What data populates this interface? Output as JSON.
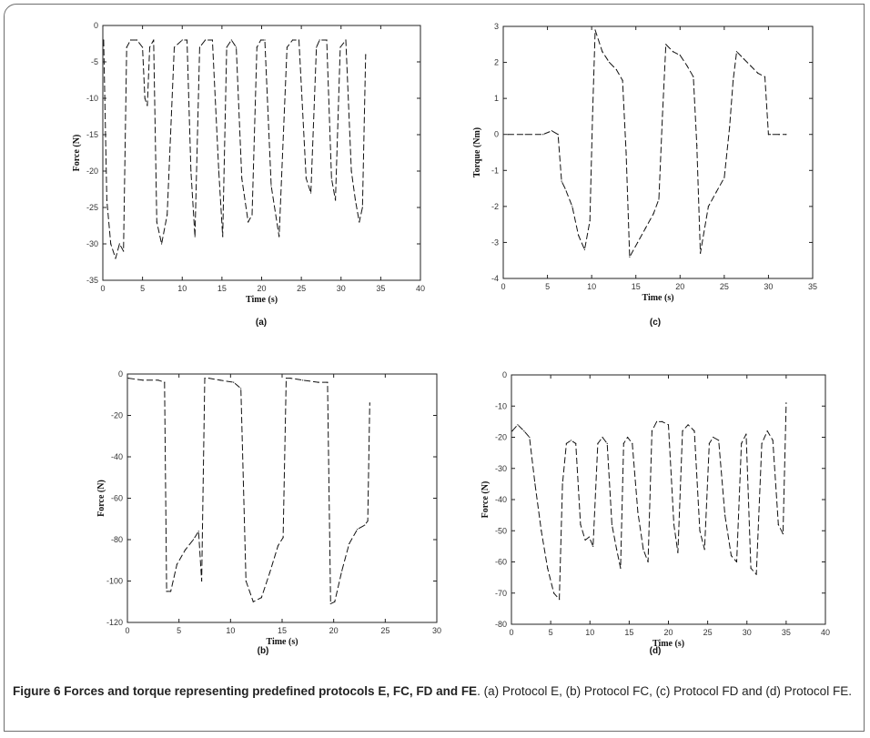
{
  "panels": [
    {
      "id": "a",
      "label": "(a)",
      "ylabel": "Force (N)",
      "xlabel": "Time (s)"
    },
    {
      "id": "c",
      "label": "(c)",
      "ylabel": "Torque (Nm)",
      "xlabel": "Time (s)"
    },
    {
      "id": "b",
      "label": "(b)",
      "ylabel": "Force (N)",
      "xlabel": "Time (s)"
    },
    {
      "id": "d",
      "label": "(d)",
      "ylabel": "Force (N)",
      "xlabel": "Time (s)"
    }
  ],
  "caption": {
    "title": "Figure 6 Forces and torque representing predefined protocols E, FC, FD and FE",
    "text": ". (a) Protocol E, (b) Protocol FC, (c) Protocol FD and (d) Protocol FE."
  },
  "chart_data": [
    {
      "id": "a",
      "type": "line",
      "xlabel": "Time (s)",
      "ylabel": "Force (N)",
      "xlim": [
        0,
        40
      ],
      "ylim": [
        -35,
        0
      ],
      "xticks": [
        0,
        5,
        10,
        15,
        20,
        25,
        30,
        35,
        40
      ],
      "yticks": [
        0,
        -5,
        -10,
        -15,
        -20,
        -25,
        -30,
        -35
      ],
      "line_style": "dashed",
      "color": "#111111",
      "x": [
        0.1,
        0.5,
        1.0,
        1.6,
        2.1,
        2.6,
        3.0,
        3.5,
        4.3,
        5.0,
        5.3,
        5.6,
        5.9,
        6.4,
        6.8,
        7.4,
        8.1,
        9.0,
        10.0,
        10.6,
        11.1,
        11.6,
        12.2,
        12.9,
        13.8,
        14.6,
        15.1,
        15.6,
        16.2,
        16.8,
        17.5,
        18.3,
        18.8,
        19.4,
        19.9,
        20.4,
        21.2,
        22.2,
        23.2,
        23.9,
        24.3,
        24.7,
        25.6,
        26.2,
        26.9,
        27.3,
        28.2,
        28.8,
        29.3,
        29.9,
        30.6,
        31.3,
        31.8,
        32.3,
        32.7,
        33.1
      ],
      "y": [
        -2,
        -24,
        -30,
        -32,
        -30,
        -31,
        -3,
        -2,
        -2,
        -3,
        -10,
        -11,
        -3,
        -2,
        -27,
        -30,
        -26,
        -3,
        -2,
        -2,
        -20,
        -29,
        -3,
        -2,
        -2,
        -20,
        -29,
        -3,
        -2,
        -3,
        -21,
        -27,
        -26,
        -3,
        -2,
        -2,
        -22,
        -29,
        -3,
        -2,
        -2,
        -2,
        -21,
        -23,
        -3,
        -2,
        -2,
        -21,
        -24,
        -3,
        -2,
        -20,
        -24,
        -27,
        -25,
        -4
      ]
    },
    {
      "id": "c",
      "type": "line",
      "xlabel": "Time (s)",
      "ylabel": "Torque (Nm)",
      "xlim": [
        0,
        35
      ],
      "ylim": [
        -4,
        3
      ],
      "xticks": [
        0,
        5,
        10,
        15,
        20,
        25,
        30,
        35
      ],
      "yticks": [
        3,
        2,
        1,
        0,
        -1,
        -2,
        -3,
        -4
      ],
      "line_style": "dashed",
      "color": "#111111",
      "x": [
        0.5,
        2.5,
        4.5,
        5.5,
        6.2,
        6.6,
        7.0,
        7.8,
        8.5,
        9.2,
        9.8,
        10.1,
        10.4,
        11.2,
        12.0,
        12.8,
        13.5,
        13.9,
        14.3,
        15.2,
        16.1,
        17.0,
        17.6,
        18.0,
        18.4,
        19.2,
        20.0,
        20.8,
        21.5,
        21.9,
        22.3,
        23.2,
        24.1,
        25.0,
        25.6,
        26.0,
        26.4,
        27.2,
        28.0,
        28.8,
        29.6,
        30.0,
        30.5,
        31.2,
        32.0
      ],
      "y": [
        0.0,
        0.0,
        0.0,
        0.1,
        0.0,
        -1.3,
        -1.5,
        -2.0,
        -2.8,
        -3.2,
        -2.4,
        0.5,
        2.9,
        2.3,
        2.0,
        1.8,
        1.5,
        -0.5,
        -3.4,
        -3.0,
        -2.6,
        -2.2,
        -1.8,
        0.5,
        2.5,
        2.3,
        2.2,
        1.9,
        1.6,
        -0.3,
        -3.3,
        -2.0,
        -1.6,
        -1.2,
        0.2,
        1.5,
        2.3,
        2.1,
        1.9,
        1.7,
        1.6,
        0.0,
        0.0,
        0.0,
        0.0
      ]
    },
    {
      "id": "b",
      "type": "line",
      "xlabel": "Time (s)",
      "ylabel": "Force (N)",
      "xlim": [
        0,
        30
      ],
      "ylim": [
        -120,
        0
      ],
      "xticks": [
        0,
        5,
        10,
        15,
        20,
        25,
        30
      ],
      "yticks": [
        0,
        -20,
        -40,
        -60,
        -80,
        -100,
        -120
      ],
      "line_style": "dashed",
      "color": "#111111",
      "x": [
        0.1,
        1.5,
        3.0,
        3.6,
        3.8,
        4.2,
        4.8,
        5.6,
        6.4,
        6.9,
        7.2,
        7.5,
        7.9,
        9.0,
        10.3,
        11.0,
        11.5,
        12.2,
        13.0,
        13.8,
        14.6,
        15.1,
        15.4,
        15.8,
        17.0,
        18.5,
        19.4,
        19.7,
        20.1,
        20.8,
        21.5,
        22.3,
        23.0,
        23.3,
        23.5
      ],
      "y": [
        -2,
        -3,
        -3,
        -4,
        -105,
        -105,
        -92,
        -85,
        -80,
        -76,
        -100,
        -2,
        -2,
        -3,
        -4,
        -7,
        -100,
        -110,
        -108,
        -96,
        -83,
        -79,
        -2,
        -2,
        -3,
        -4,
        -4,
        -111,
        -110,
        -95,
        -82,
        -75,
        -73,
        -71,
        -14
      ]
    },
    {
      "id": "d",
      "type": "line",
      "xlabel": "Time (s)",
      "ylabel": "Force (N)",
      "xlim": [
        0,
        40
      ],
      "ylim": [
        -80,
        0
      ],
      "xticks": [
        0,
        5,
        10,
        15,
        20,
        25,
        30,
        35,
        40
      ],
      "yticks": [
        0,
        -10,
        -20,
        -30,
        -40,
        -50,
        -60,
        -70,
        -80
      ],
      "line_style": "dashed",
      "color": "#111111",
      "x": [
        0.1,
        0.8,
        1.6,
        2.3,
        3.0,
        3.8,
        4.6,
        5.4,
        6.1,
        6.5,
        7.0,
        7.6,
        8.2,
        8.8,
        9.4,
        9.9,
        10.4,
        11.0,
        11.6,
        12.2,
        12.8,
        13.4,
        13.9,
        14.3,
        14.8,
        15.4,
        16.1,
        16.8,
        17.4,
        17.9,
        18.5,
        19.2,
        20.0,
        20.7,
        21.2,
        21.8,
        22.5,
        23.3,
        24.0,
        24.6,
        25.2,
        25.7,
        26.4,
        27.2,
        28.0,
        28.7,
        29.3,
        29.9,
        30.5,
        31.2,
        31.9,
        32.6,
        33.3,
        34.0,
        34.6,
        35.0
      ],
      "y": [
        -18,
        -16,
        -18,
        -20,
        -35,
        -50,
        -62,
        -70,
        -72,
        -35,
        -22,
        -21,
        -22,
        -48,
        -53,
        -52,
        -55,
        -22,
        -20,
        -22,
        -48,
        -56,
        -62,
        -22,
        -20,
        -22,
        -44,
        -56,
        -60,
        -18,
        -15,
        -15,
        -16,
        -48,
        -57,
        -18,
        -16,
        -18,
        -50,
        -56,
        -22,
        -20,
        -21,
        -45,
        -58,
        -60,
        -22,
        -19,
        -62,
        -64,
        -22,
        -18,
        -21,
        -48,
        -51,
        -9
      ]
    }
  ]
}
